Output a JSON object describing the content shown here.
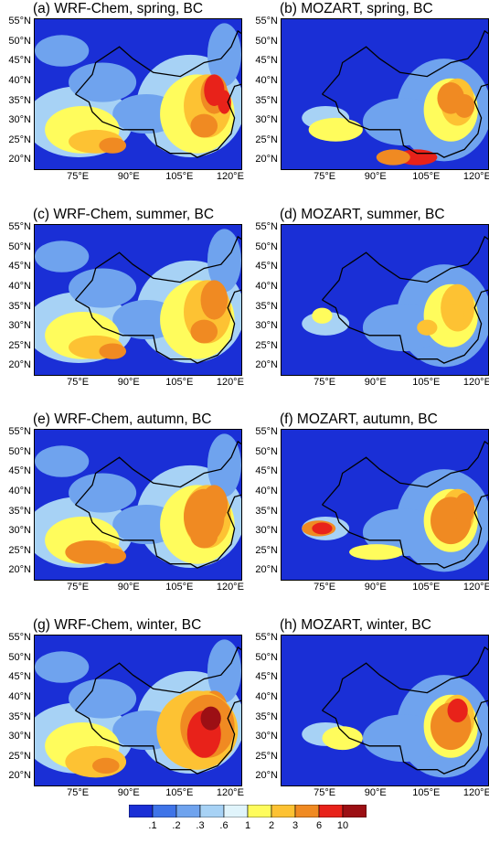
{
  "panels": [
    {
      "title": "(a) WRF-Chem, spring,  BC",
      "model": "wrf",
      "season": "spring"
    },
    {
      "title": "(b) MOZART, spring,  BC",
      "model": "mozart",
      "season": "spring"
    },
    {
      "title": "(c) WRF-Chem, summer,  BC",
      "model": "wrf",
      "season": "summer"
    },
    {
      "title": "(d) MOZART, summer,  BC",
      "model": "mozart",
      "season": "summer"
    },
    {
      "title": "(e) WRF-Chem, autumn,  BC",
      "model": "wrf",
      "season": "autumn"
    },
    {
      "title": "(f) MOZART, autumn,  BC",
      "model": "mozart",
      "season": "autumn"
    },
    {
      "title": "(g) WRF-Chem, winter,  BC",
      "model": "wrf",
      "season": "winter"
    },
    {
      "title": "(h) MOZART, winter,  BC",
      "model": "mozart",
      "season": "winter"
    }
  ],
  "lat_ticks": [
    "55°N",
    "50°N",
    "45°N",
    "40°N",
    "35°N",
    "30°N",
    "25°N",
    "20°N"
  ],
  "lon_ticks": [
    "75°E",
    "90°E",
    "105°E",
    "120°E"
  ],
  "chart_data": {
    "type": "heatmap",
    "title": "",
    "xlabel": "",
    "ylabel": "",
    "xlim": [
      62,
      123
    ],
    "ylim": [
      18,
      56
    ],
    "colorbar": {
      "labels": [
        ".1",
        ".2",
        ".3",
        ".6",
        "1",
        "2",
        "3",
        "6",
        "10"
      ],
      "colors": [
        "#1a2fd6",
        "#3f74e8",
        "#6fa3ee",
        "#a7d2f5",
        "#e0f4fb",
        "#fffc5c",
        "#fdc233",
        "#f08a22",
        "#e8221a",
        "#9c0f14"
      ]
    }
  }
}
